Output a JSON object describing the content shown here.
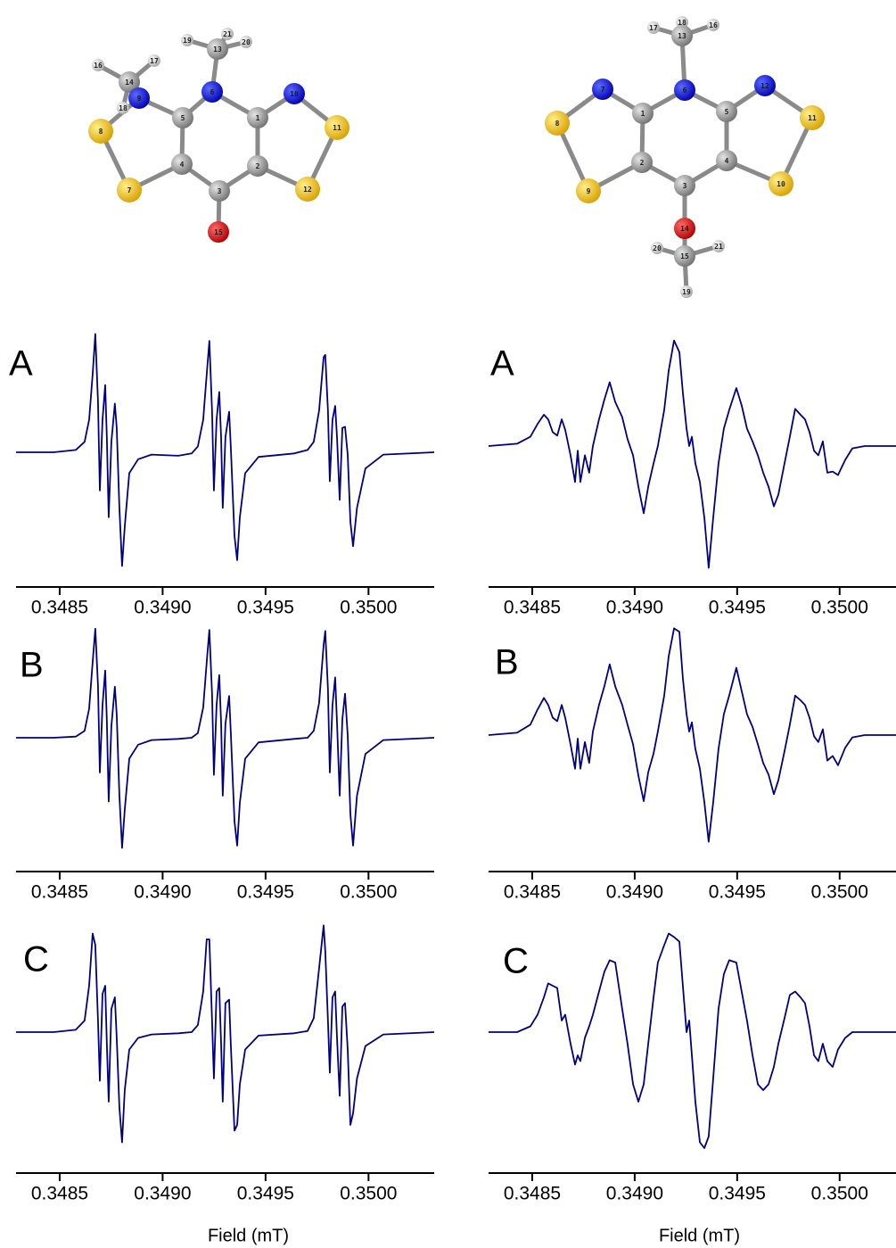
{
  "molecules": [
    {
      "atoms": [
        "14",
        "16",
        "17",
        "18",
        "9",
        "13",
        "19",
        "21",
        "20",
        "6",
        "10",
        "1",
        "5",
        "8",
        "11",
        "2",
        "4",
        "7",
        "12",
        "3",
        "15"
      ]
    },
    {
      "atoms": [
        "17",
        "18",
        "16",
        "13",
        "6",
        "7",
        "12",
        "1",
        "5",
        "8",
        "11",
        "2",
        "4",
        "9",
        "10",
        "3",
        "14",
        "20",
        "21",
        "15",
        "19"
      ]
    }
  ],
  "chart_data": [
    {
      "type": "line",
      "label": "A",
      "color": "#000080",
      "x": [
        0.348288,
        0.34847,
        0.348578,
        0.348621,
        0.348643,
        0.34866,
        0.348673,
        0.348686,
        0.348695,
        0.348708,
        0.348721,
        0.348729,
        0.348738,
        0.348751,
        0.348768,
        0.348777,
        0.34879,
        0.348803,
        0.348816,
        0.348838,
        0.348881,
        0.348946,
        0.349076,
        0.349141,
        0.349171,
        0.349197,
        0.349214,
        0.349227,
        0.34924,
        0.349249,
        0.349262,
        0.349275,
        0.349284,
        0.349292,
        0.349305,
        0.349323,
        0.349331,
        0.349349,
        0.349362,
        0.349375,
        0.349401,
        0.349466,
        0.349639,
        0.349704,
        0.349734,
        0.34976,
        0.349782,
        0.34979,
        0.349803,
        0.349812,
        0.349825,
        0.349838,
        0.349847,
        0.34986,
        0.349873,
        0.349886,
        0.349899,
        0.349912,
        0.349925,
        0.349944,
        0.349985,
        0.350072,
        0.350319
      ],
      "values": [
        0,
        0,
        0.02,
        0.09,
        0.28,
        0.67,
        1.02,
        0.44,
        -0.33,
        0.28,
        0.58,
        0.13,
        -0.56,
        0.09,
        0.42,
        0.21,
        -0.48,
        -0.98,
        -0.64,
        -0.18,
        -0.06,
        -0.02,
        -0.03,
        -0.01,
        0.05,
        0.28,
        0.67,
        0.96,
        0.36,
        -0.33,
        0.28,
        0.52,
        0.13,
        -0.48,
        0.13,
        0.35,
        0.05,
        -0.72,
        -0.93,
        -0.56,
        -0.18,
        -0.04,
        -0.01,
        0.02,
        0.09,
        0.36,
        0.82,
        0.84,
        0.36,
        -0.25,
        0.28,
        0.4,
        0.13,
        -0.41,
        0.21,
        0.22,
        -0.02,
        -0.6,
        -0.81,
        -0.48,
        -0.14,
        -0.02,
        0
      ],
      "xlim": [
        0.348288,
        0.350319
      ],
      "ylim": [
        -1.15,
        1.15
      ],
      "xticks": [
        0.3485,
        {
          "value": 0.349,
          "label": "0.3490"
        },
        0.3495,
        {
          "value": 0.35,
          "label": "0.3500"
        }
      ]
    },
    {
      "type": "line",
      "label": "B",
      "color": "#000080",
      "x": [
        0.348288,
        0.34847,
        0.348578,
        0.348621,
        0.348643,
        0.34866,
        0.348673,
        0.348686,
        0.348695,
        0.348708,
        0.348721,
        0.348729,
        0.348738,
        0.348751,
        0.348768,
        0.348777,
        0.34879,
        0.348803,
        0.348816,
        0.348838,
        0.348881,
        0.348946,
        0.349076,
        0.349141,
        0.349171,
        0.349197,
        0.349214,
        0.349227,
        0.34924,
        0.349249,
        0.349262,
        0.349275,
        0.349284,
        0.349292,
        0.349305,
        0.349323,
        0.349331,
        0.349349,
        0.349362,
        0.349375,
        0.349401,
        0.349466,
        0.349639,
        0.349704,
        0.349734,
        0.34976,
        0.349782,
        0.34979,
        0.349803,
        0.349812,
        0.349825,
        0.349838,
        0.349847,
        0.34986,
        0.349873,
        0.349886,
        0.349899,
        0.349912,
        0.349925,
        0.349944,
        0.349985,
        0.350072,
        0.350319
      ],
      "values": [
        0,
        0,
        0.01,
        0.06,
        0.25,
        0.65,
        0.94,
        0.45,
        -0.3,
        0.28,
        0.58,
        0.15,
        -0.55,
        0.1,
        0.44,
        0.2,
        -0.5,
        -0.95,
        -0.62,
        -0.18,
        -0.06,
        -0.02,
        -0.01,
        0,
        0.04,
        0.26,
        0.65,
        0.93,
        0.38,
        -0.32,
        0.28,
        0.54,
        0.13,
        -0.5,
        0.12,
        0.36,
        0.05,
        -0.72,
        -0.93,
        -0.56,
        -0.18,
        -0.04,
        -0.01,
        0,
        0.06,
        0.3,
        0.8,
        0.92,
        0.42,
        -0.3,
        0.28,
        0.52,
        0.13,
        -0.5,
        0.16,
        0.38,
        0.02,
        -0.66,
        -0.93,
        -0.5,
        -0.14,
        -0.02,
        0
      ],
      "xlim": [
        0.348288,
        0.350319
      ],
      "ylim": [
        -1.15,
        1.15
      ],
      "xticks": [
        0.3485,
        {
          "value": 0.349,
          "label": "0.3490"
        },
        0.3495,
        {
          "value": 0.35,
          "label": "0.3500"
        }
      ]
    },
    {
      "type": "line",
      "label": "C",
      "color": "#000080",
      "xlabel": "Field (mT)",
      "x": [
        0.348288,
        0.34847,
        0.348578,
        0.348621,
        0.348643,
        0.34866,
        0.348673,
        0.348686,
        0.348695,
        0.348708,
        0.348721,
        0.348729,
        0.348738,
        0.348751,
        0.348768,
        0.348777,
        0.34879,
        0.348803,
        0.348816,
        0.348838,
        0.348881,
        0.348946,
        0.349076,
        0.349141,
        0.349171,
        0.349197,
        0.349214,
        0.349227,
        0.34924,
        0.349249,
        0.349262,
        0.349275,
        0.349284,
        0.349292,
        0.349305,
        0.349323,
        0.349331,
        0.349349,
        0.349362,
        0.349375,
        0.349401,
        0.349466,
        0.349639,
        0.349704,
        0.349734,
        0.34976,
        0.349782,
        0.34979,
        0.349803,
        0.349812,
        0.349825,
        0.349838,
        0.349847,
        0.34986,
        0.349873,
        0.349886,
        0.349899,
        0.349912,
        0.349925,
        0.349944,
        0.349985,
        0.350072,
        0.350319
      ],
      "values": [
        0,
        0,
        0.02,
        0.1,
        0.4,
        0.85,
        0.75,
        0.1,
        -0.42,
        0.33,
        0.4,
        -0.1,
        -0.6,
        0.2,
        0.3,
        -0.05,
        -0.65,
        -0.95,
        -0.5,
        -0.15,
        -0.05,
        -0.02,
        -0.01,
        0,
        0.06,
        0.35,
        0.8,
        0.8,
        0.1,
        -0.4,
        0.35,
        0.38,
        -0.1,
        -0.6,
        0.25,
        0.28,
        -0.1,
        -0.85,
        -0.8,
        -0.45,
        -0.15,
        -0.03,
        -0.01,
        0.01,
        0.12,
        0.55,
        0.92,
        0.7,
        0.1,
        -0.35,
        0.3,
        0.35,
        -0.05,
        -0.55,
        0.22,
        0.25,
        -0.15,
        -0.8,
        -0.7,
        -0.4,
        -0.12,
        -0.02,
        0
      ],
      "xlim": [
        0.348288,
        0.350319
      ],
      "ylim": [
        -1.15,
        1.15
      ],
      "xticks": [
        0.3485,
        {
          "value": 0.349,
          "label": "0.3490"
        },
        0.3495,
        {
          "value": 0.35,
          "label": "0.3500"
        }
      ]
    },
    {
      "type": "line",
      "label": "A",
      "color": "#000080",
      "x": [
        0.348287,
        0.348426,
        0.348491,
        0.348526,
        0.348557,
        0.348578,
        0.3486,
        0.348622,
        0.348644,
        0.348661,
        0.348687,
        0.348709,
        0.348722,
        0.348735,
        0.348757,
        0.348778,
        0.348796,
        0.348826,
        0.348852,
        0.348878,
        0.348905,
        0.348939,
        0.348965,
        0.348992,
        0.349018,
        0.349044,
        0.349066,
        0.349092,
        0.349113,
        0.349144,
        0.349166,
        0.349192,
        0.349218,
        0.349235,
        0.349253,
        0.349266,
        0.349279,
        0.349296,
        0.349318,
        0.34934,
        0.349361,
        0.349383,
        0.349409,
        0.349435,
        0.349461,
        0.349496,
        0.349522,
        0.349548,
        0.349575,
        0.349601,
        0.349627,
        0.349653,
        0.349679,
        0.349701,
        0.349731,
        0.349757,
        0.349783,
        0.349809,
        0.349831,
        0.349853,
        0.349875,
        0.349896,
        0.349918,
        0.34994,
        0.349966,
        0.349992,
        0.350027,
        0.350062,
        0.350123,
        0.350275
      ],
      "values": [
        0,
        0.02,
        0.08,
        0.19,
        0.27,
        0.23,
        0.12,
        0.09,
        0.23,
        0.14,
        -0.08,
        -0.31,
        -0.04,
        -0.31,
        -0.08,
        -0.23,
        0,
        0.23,
        0.4,
        0.55,
        0.38,
        0.25,
        0.06,
        -0.08,
        -0.35,
        -0.58,
        -0.35,
        -0.15,
        0,
        0.31,
        0.65,
        0.91,
        0.81,
        0.46,
        0.15,
        0,
        0.08,
        -0.15,
        -0.31,
        -0.62,
        -1.05,
        -0.62,
        -0.15,
        0.15,
        0.31,
        0.5,
        0.35,
        0.15,
        0.04,
        -0.08,
        -0.23,
        -0.35,
        -0.52,
        -0.42,
        -0.15,
        0.08,
        0.32,
        0.27,
        0.23,
        0.12,
        -0.04,
        -0.08,
        0.04,
        -0.23,
        -0.22,
        -0.25,
        -0.12,
        -0.02,
        0,
        0
      ],
      "xlim": [
        0.348287,
        0.350275
      ],
      "ylim": [
        -1.15,
        1.15
      ],
      "xticks": [
        0.3485,
        {
          "value": 0.349,
          "label": "0.3490"
        },
        0.3495,
        {
          "value": 0.35,
          "label": "0.3500"
        }
      ]
    },
    {
      "type": "line",
      "label": "B",
      "color": "#000080",
      "x": [
        0.348287,
        0.348426,
        0.348491,
        0.348526,
        0.348557,
        0.348578,
        0.3486,
        0.348622,
        0.348644,
        0.348661,
        0.348687,
        0.348709,
        0.348722,
        0.348735,
        0.348757,
        0.348778,
        0.348796,
        0.348826,
        0.348852,
        0.348878,
        0.348905,
        0.348939,
        0.348965,
        0.348992,
        0.349018,
        0.349044,
        0.349066,
        0.349092,
        0.349113,
        0.349144,
        0.349166,
        0.349192,
        0.349218,
        0.349235,
        0.349253,
        0.349266,
        0.349279,
        0.349296,
        0.349318,
        0.34934,
        0.349361,
        0.349383,
        0.349409,
        0.349435,
        0.349461,
        0.349496,
        0.349522,
        0.349548,
        0.349575,
        0.349601,
        0.349627,
        0.349653,
        0.349679,
        0.349701,
        0.349731,
        0.349757,
        0.349783,
        0.349809,
        0.349831,
        0.349853,
        0.349875,
        0.349896,
        0.349918,
        0.34994,
        0.349966,
        0.349992,
        0.350027,
        0.350062,
        0.350123,
        0.350275
      ],
      "values": [
        0,
        0.02,
        0.09,
        0.22,
        0.32,
        0.26,
        0.15,
        0.12,
        0.26,
        0.15,
        -0.08,
        -0.29,
        -0.03,
        -0.29,
        -0.06,
        -0.24,
        0.03,
        0.26,
        0.42,
        0.61,
        0.42,
        0.26,
        0.09,
        -0.08,
        -0.35,
        -0.57,
        -0.32,
        -0.16,
        0.03,
        0.34,
        0.68,
        0.92,
        0.89,
        0.49,
        0.18,
        0.03,
        0.11,
        -0.12,
        -0.29,
        -0.58,
        -0.92,
        -0.58,
        -0.12,
        0.18,
        0.34,
        0.58,
        0.38,
        0.18,
        0.07,
        -0.08,
        -0.24,
        -0.34,
        -0.51,
        -0.39,
        -0.14,
        0.09,
        0.34,
        0.3,
        0.26,
        0.15,
        -0.01,
        -0.06,
        0.05,
        -0.22,
        -0.18,
        -0.26,
        -0.11,
        -0.02,
        0,
        0
      ],
      "xlim": [
        0.348287,
        0.350275
      ],
      "ylim": [
        -1.15,
        1.15
      ],
      "xticks": [
        0.3485,
        {
          "value": 0.349,
          "label": "0.3490"
        },
        0.3495,
        {
          "value": 0.35,
          "label": "0.3500"
        }
      ]
    },
    {
      "type": "line",
      "label": "C",
      "color": "#000080",
      "xlabel": "Field (mT)",
      "x": [
        0.348287,
        0.348426,
        0.348491,
        0.348526,
        0.348557,
        0.348578,
        0.3486,
        0.348622,
        0.348644,
        0.348661,
        0.348687,
        0.348709,
        0.348722,
        0.348735,
        0.348757,
        0.348778,
        0.348796,
        0.348826,
        0.348852,
        0.348878,
        0.348905,
        0.348939,
        0.348965,
        0.348992,
        0.349018,
        0.349044,
        0.349066,
        0.349092,
        0.349113,
        0.349144,
        0.349166,
        0.349192,
        0.349218,
        0.349235,
        0.349253,
        0.349266,
        0.349279,
        0.349296,
        0.349318,
        0.34934,
        0.349361,
        0.349383,
        0.349409,
        0.349435,
        0.349461,
        0.349496,
        0.349522,
        0.349548,
        0.349575,
        0.349601,
        0.349627,
        0.349653,
        0.349679,
        0.349701,
        0.349731,
        0.349757,
        0.349783,
        0.349809,
        0.349831,
        0.349853,
        0.349875,
        0.349896,
        0.349918,
        0.34994,
        0.349966,
        0.349992,
        0.350027,
        0.350062,
        0.350123,
        0.350275
      ],
      "values": [
        0,
        0,
        0.05,
        0.15,
        0.3,
        0.42,
        0.4,
        0.38,
        0.1,
        0.15,
        -0.1,
        -0.28,
        -0.2,
        -0.25,
        -0.05,
        0.05,
        0.15,
        0.35,
        0.52,
        0.62,
        0.6,
        0.2,
        -0.1,
        -0.45,
        -0.6,
        -0.45,
        -0.1,
        0.3,
        0.6,
        0.75,
        0.85,
        0.82,
        0.78,
        0.4,
        0,
        0.1,
        -0.2,
        -0.6,
        -0.95,
        -1,
        -0.9,
        -0.4,
        0.2,
        0.5,
        0.62,
        0.6,
        0.35,
        0.1,
        -0.2,
        -0.45,
        -0.5,
        -0.45,
        -0.3,
        -0.1,
        0.12,
        0.32,
        0.35,
        0.3,
        0.25,
        0.05,
        -0.2,
        -0.25,
        -0.1,
        -0.25,
        -0.3,
        -0.15,
        -0.05,
        0,
        0,
        0
      ],
      "xlim": [
        0.348287,
        0.350275
      ],
      "ylim": [
        -1.15,
        1.15
      ],
      "xticks": [
        0.3485,
        {
          "value": 0.349,
          "label": "0.3490"
        },
        0.3495,
        {
          "value": 0.35,
          "label": "0.3500"
        }
      ]
    }
  ]
}
